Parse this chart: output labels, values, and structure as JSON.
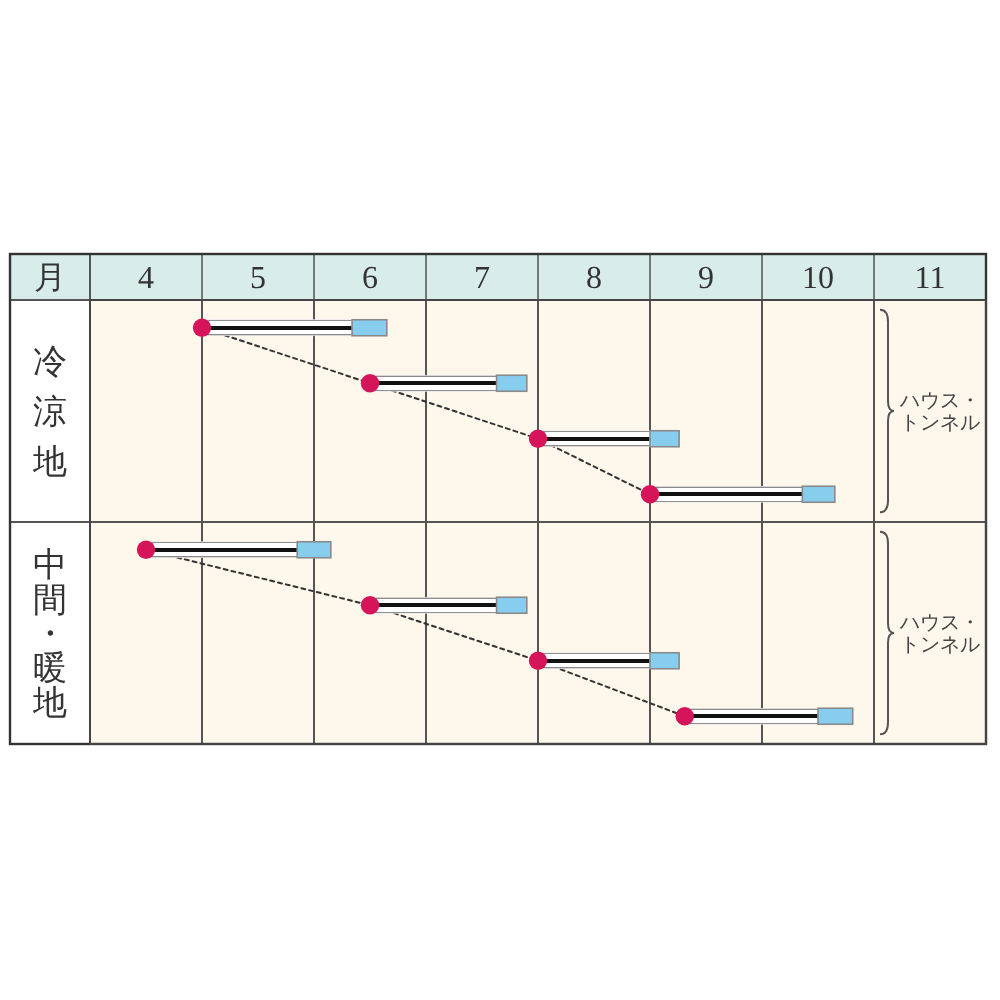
{
  "chart_data": {
    "type": "bar",
    "orientation": "horizontal",
    "xlabel": "月",
    "categories": [
      null,
      null,
      null,
      null,
      null,
      null,
      null,
      null
    ],
    "series": [
      {
        "type": "bar",
        "color": "#ffffff",
        "base": [
          5,
          6.5,
          8,
          9,
          4.5,
          6.5,
          8,
          9.31
        ],
        "values": [
          1.34,
          1.13,
          1.0,
          1.36,
          1.35,
          1.13,
          1.0,
          1.19
        ]
      },
      {
        "type": "bar",
        "color": "#87cdee",
        "base": [
          6.34,
          7.63,
          9.0,
          10.36,
          5.85,
          7.63,
          9.0,
          10.5
        ],
        "values": [
          0.31,
          0.27,
          0.26,
          0.29,
          0.3,
          0.27,
          0.26,
          0.31
        ]
      },
      {
        "type": "scatter",
        "color": "#d6145a",
        "marker": "circle",
        "values": [
          5,
          6.5,
          8,
          9,
          4.5,
          6.5,
          8,
          9.31
        ]
      },
      {
        "type": "line",
        "color": "#333333",
        "line_style": "dotted",
        "marker": "none",
        "values": [
          5,
          6.5,
          8,
          9,
          null,
          null,
          null,
          null
        ]
      },
      {
        "type": "line",
        "color": "#333333",
        "line_style": "dotted",
        "marker": "none",
        "values": [
          null,
          null,
          null,
          null,
          4.5,
          6.5,
          8,
          9.31
        ]
      }
    ],
    "xlim": [
      4,
      12
    ],
    "xticks": [
      {
        "value": 4,
        "label": null
      },
      {
        "value": 4.5,
        "label": "4"
      },
      {
        "value": 5,
        "label": null
      },
      {
        "value": 5.5,
        "label": "5"
      },
      {
        "value": 6,
        "label": null
      },
      {
        "value": 6.5,
        "label": "6"
      },
      {
        "value": 7,
        "label": null
      },
      {
        "value": 7.5,
        "label": "7"
      },
      {
        "value": 8,
        "label": null
      },
      {
        "value": 8.5,
        "label": "8"
      },
      {
        "value": 9,
        "label": null
      },
      {
        "value": 9.5,
        "label": "9"
      },
      {
        "value": 10,
        "label": null
      },
      {
        "value": 10.5,
        "label": "10"
      },
      {
        "value": 11,
        "label": null
      },
      {
        "value": 11.5,
        "label": "11"
      },
      {
        "value": 12,
        "label": null
      }
    ],
    "grid": "x",
    "annotations": [
      "冷涼地",
      "中間・暖地",
      "ハウス・トンネル",
      "ハウス・トンネル"
    ]
  }
}
